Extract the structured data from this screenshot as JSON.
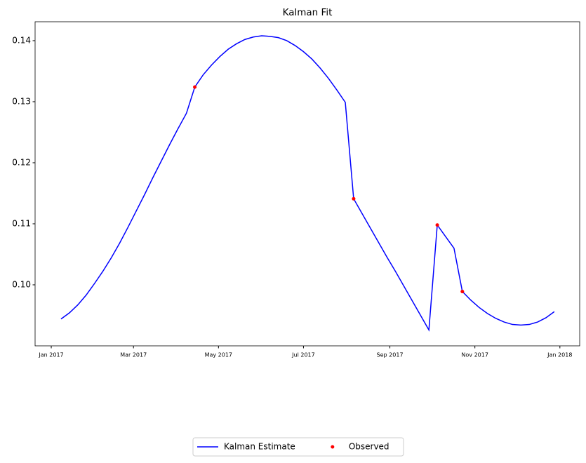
{
  "chart_data": {
    "type": "line",
    "title": "Kalman Fit",
    "xlim": [
      -11.6,
      379.2
    ],
    "xticks": [
      {
        "value": 0,
        "label": "Jan 2017"
      },
      {
        "value": 59,
        "label": "Mar 2017"
      },
      {
        "value": 120,
        "label": "May 2017"
      },
      {
        "value": 181,
        "label": "Jul 2017"
      },
      {
        "value": 243,
        "label": "Sep 2017"
      },
      {
        "value": 304,
        "label": "Nov 2017"
      },
      {
        "value": 365,
        "label": "Jan 2018"
      }
    ],
    "ylim": [
      0.09,
      0.1431
    ],
    "yticks": [
      {
        "value": 0.1,
        "label": "0.10"
      },
      0.11,
      0.12,
      0.13,
      0.14
    ],
    "legend": "lower center",
    "series": [
      {
        "name": "Kalman Estimate",
        "type": "line",
        "color": "#0000ff",
        "x": [
          7,
          13,
          19,
          25,
          31,
          37,
          43,
          49,
          55,
          61,
          67,
          73,
          79,
          85,
          91,
          97,
          103,
          109,
          115,
          121,
          127,
          133,
          139,
          145,
          151,
          157,
          163,
          169,
          175,
          181,
          187,
          193,
          199,
          205,
          211,
          217,
          223,
          229,
          235,
          241,
          247,
          253,
          259,
          265,
          271,
          277,
          283,
          289,
          295,
          301,
          307,
          313,
          319,
          325,
          331,
          337,
          343,
          349,
          355,
          361
        ],
        "values": [
          0.0944,
          0.0954,
          0.0967,
          0.0983,
          0.1002,
          0.1022,
          0.1044,
          0.1068,
          0.1094,
          0.1121,
          0.1148,
          0.1176,
          0.1203,
          0.123,
          0.1256,
          0.1281,
          0.1324,
          0.1344,
          0.136,
          0.1374,
          0.1386,
          0.1395,
          0.1402,
          0.1406,
          0.1408,
          0.1407,
          0.1405,
          0.14,
          0.1392,
          0.1382,
          0.137,
          0.1355,
          0.1338,
          0.1319,
          0.1299,
          0.1141,
          0.1117,
          0.1093,
          0.1069,
          0.1045,
          0.1022,
          0.0998,
          0.0974,
          0.095,
          0.0926,
          0.1098,
          0.1079,
          0.106,
          0.0989,
          0.0975,
          0.0963,
          0.0953,
          0.0945,
          0.0939,
          0.0935,
          0.0934,
          0.0935,
          0.0939,
          0.0946,
          0.0956
        ]
      },
      {
        "name": "Observed",
        "type": "scatter",
        "color": "#ff0000",
        "x": [
          103,
          217,
          277,
          295
        ],
        "values": [
          0.1324,
          0.1141,
          0.1098,
          0.0989
        ]
      }
    ]
  }
}
